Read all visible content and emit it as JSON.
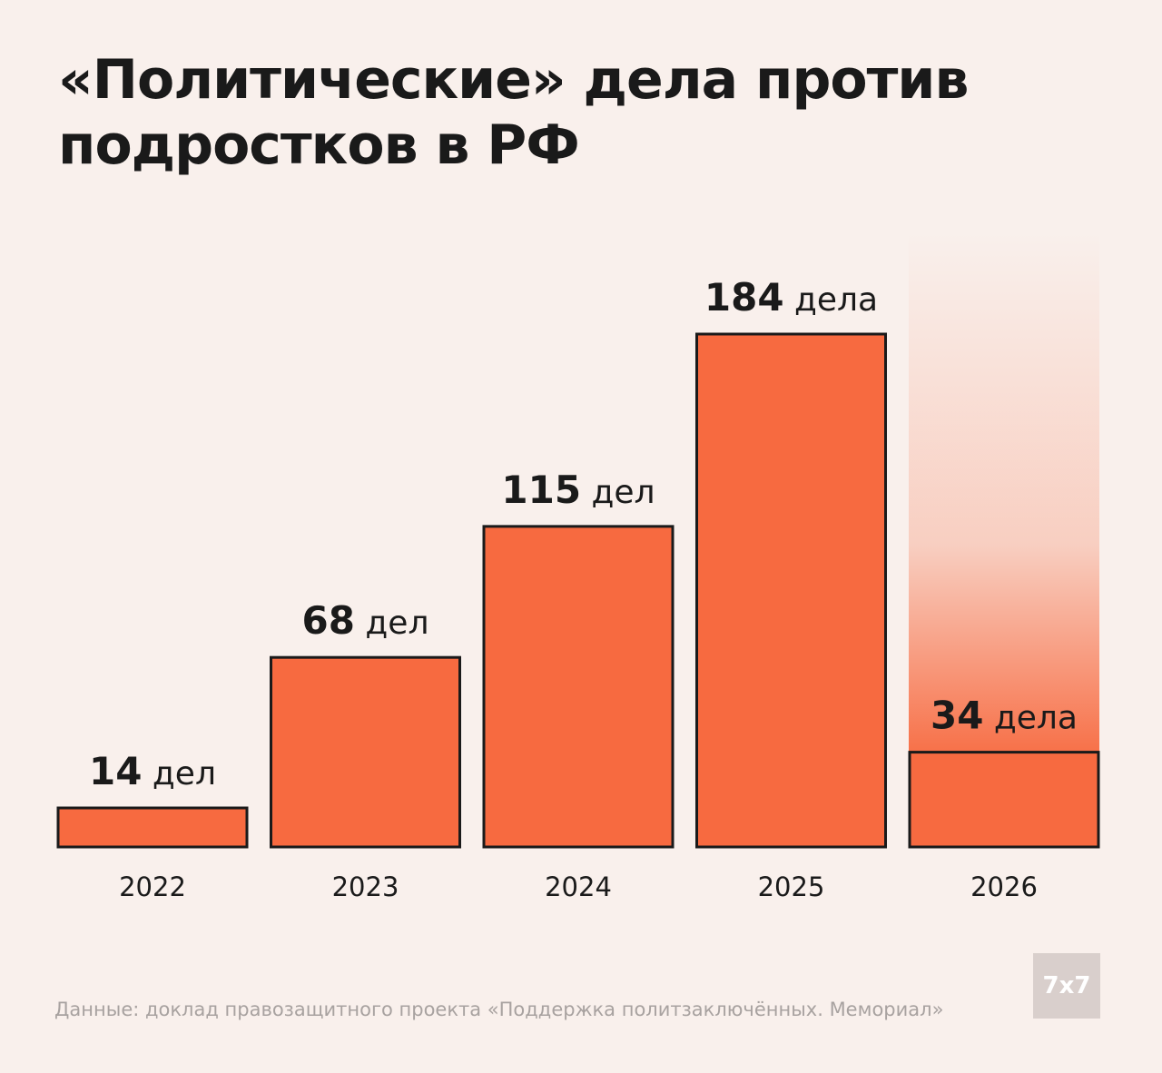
{
  "chart_data": {
    "type": "bar",
    "title": "«Политические» дела против подростков в РФ",
    "categories": [
      "2022",
      "2023",
      "2024",
      "2025",
      "2026"
    ],
    "values": [
      14,
      68,
      115,
      184,
      34
    ],
    "value_labels": [
      "14 дел",
      "68 дел",
      "115 дел",
      "184 дела",
      "34 дела"
    ],
    "color": "#f76a40",
    "ylim": [
      0,
      184
    ]
  },
  "source": "Данные: доклад правозащитного проекта «Поддержка политзаключённых. Мемориал»",
  "logo": "7x7"
}
